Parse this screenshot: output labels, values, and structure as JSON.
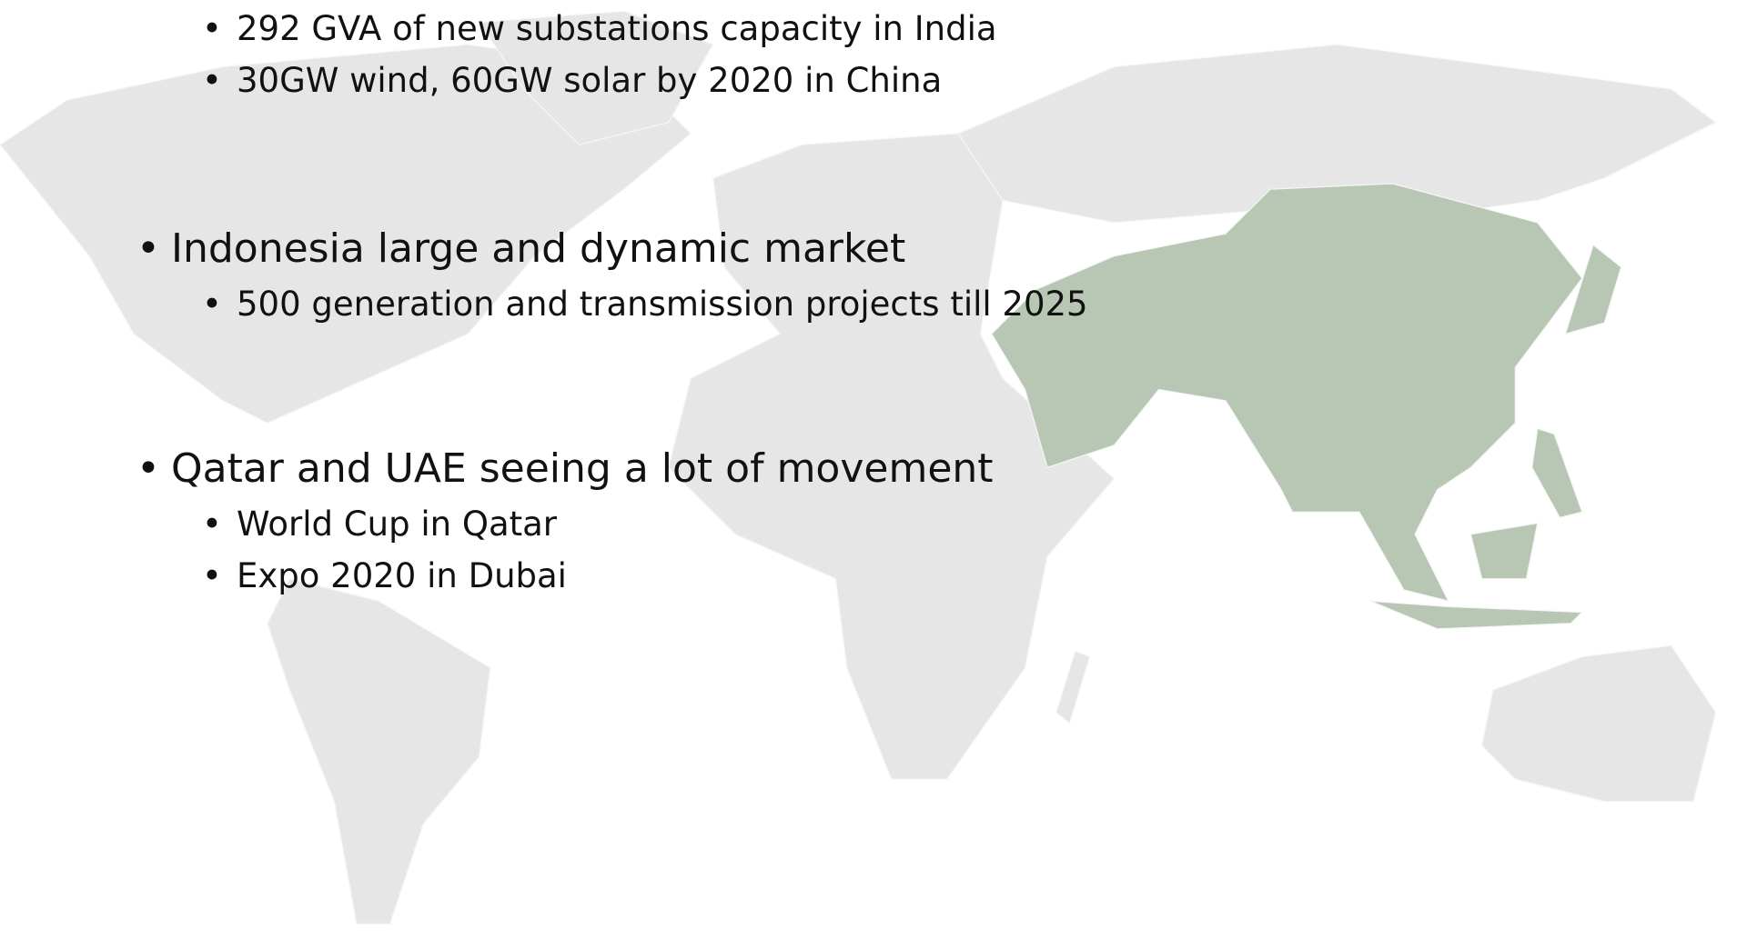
{
  "bullets": [
    {
      "children": [
        "292 GVA of new substations capacity in India",
        "30GW wind, 60GW solar by 2020 in China"
      ]
    },
    {
      "text": "Indonesia large and dynamic market",
      "children": [
        "500 generation and transmission projects till 2025"
      ]
    },
    {
      "text": "Qatar and UAE seeing a lot of movement",
      "children": [
        "World Cup in Qatar",
        "Expo 2020 in Dubai"
      ]
    }
  ]
}
